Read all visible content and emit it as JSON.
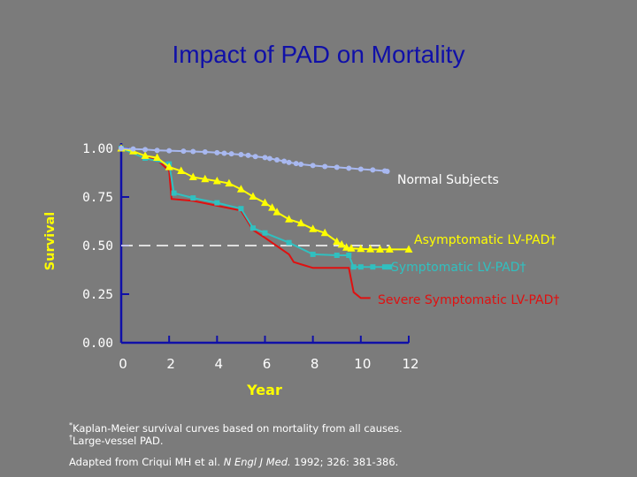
{
  "title": "Impact of PAD on Mortality",
  "chart_data": {
    "type": "line",
    "title": "Impact of PAD on Mortality",
    "xlabel": "Year",
    "ylabel": "Survival",
    "xlim": [
      0,
      12
    ],
    "ylim": [
      0.0,
      1.0
    ],
    "x_ticks": [
      "0",
      "2",
      "4",
      "6",
      "8",
      "10",
      "12"
    ],
    "y_ticks": [
      "0.00",
      "0.25",
      "0.50",
      "0.75",
      "1.00"
    ],
    "grid": false,
    "legend": "inline labels at the right end of each curve",
    "reference_line": {
      "y": 0.5,
      "style": "dashed",
      "x_range": [
        0,
        11.2
      ]
    },
    "series": [
      {
        "name": "Normal Subjects",
        "color": "#a8b8f0",
        "marker": "circle",
        "points": [
          [
            0,
            1.0
          ],
          [
            0.5,
            0.997
          ],
          [
            1,
            0.994
          ],
          [
            1.5,
            0.99
          ],
          [
            2,
            0.988
          ],
          [
            2.6,
            0.986
          ],
          [
            3,
            0.984
          ],
          [
            3.5,
            0.982
          ],
          [
            4,
            0.978
          ],
          [
            4.3,
            0.975
          ],
          [
            4.6,
            0.972
          ],
          [
            5,
            0.968
          ],
          [
            5.3,
            0.964
          ],
          [
            5.6,
            0.958
          ],
          [
            6,
            0.953
          ],
          [
            6.2,
            0.948
          ],
          [
            6.5,
            0.941
          ],
          [
            6.8,
            0.934
          ],
          [
            7,
            0.928
          ],
          [
            7.3,
            0.922
          ],
          [
            7.5,
            0.918
          ],
          [
            8,
            0.912
          ],
          [
            8.5,
            0.907
          ],
          [
            9,
            0.903
          ],
          [
            9.5,
            0.898
          ],
          [
            10,
            0.893
          ],
          [
            10.5,
            0.889
          ],
          [
            11,
            0.884
          ],
          [
            11.1,
            0.882
          ]
        ]
      },
      {
        "name": "Asymptomatic LV-PAD†",
        "color": "#ffff00",
        "marker": "triangle",
        "points": [
          [
            0,
            1.0
          ],
          [
            0.5,
            0.985
          ],
          [
            1,
            0.962
          ],
          [
            1.5,
            0.952
          ],
          [
            2,
            0.904
          ],
          [
            2.5,
            0.884
          ],
          [
            3,
            0.852
          ],
          [
            3.5,
            0.842
          ],
          [
            4,
            0.832
          ],
          [
            4.5,
            0.82
          ],
          [
            5,
            0.79
          ],
          [
            5.5,
            0.752
          ],
          [
            6,
            0.72
          ],
          [
            6.3,
            0.695
          ],
          [
            6.5,
            0.672
          ],
          [
            7,
            0.635
          ],
          [
            7.5,
            0.615
          ],
          [
            8,
            0.585
          ],
          [
            8.5,
            0.565
          ],
          [
            9,
            0.52
          ],
          [
            9.2,
            0.505
          ],
          [
            9.4,
            0.49
          ],
          [
            9.6,
            0.485
          ],
          [
            10,
            0.483
          ],
          [
            10.4,
            0.481
          ],
          [
            10.8,
            0.48
          ],
          [
            11.2,
            0.48
          ],
          [
            12,
            0.48
          ]
        ]
      },
      {
        "name": "Symptomatic LV-PAD†",
        "color": "#30c0c0",
        "marker": "square",
        "points": [
          [
            0,
            1.0
          ],
          [
            1,
            0.95
          ],
          [
            2,
            0.92
          ],
          [
            2.2,
            0.77
          ],
          [
            3,
            0.745
          ],
          [
            4,
            0.72
          ],
          [
            5,
            0.69
          ],
          [
            5.5,
            0.59
          ],
          [
            6,
            0.565
          ],
          [
            7,
            0.515
          ],
          [
            8,
            0.455
          ],
          [
            9,
            0.45
          ],
          [
            9.5,
            0.45
          ],
          [
            9.7,
            0.39
          ],
          [
            10,
            0.39
          ],
          [
            10.5,
            0.39
          ],
          [
            11,
            0.39
          ],
          [
            11.2,
            0.39
          ]
        ]
      },
      {
        "name": "Severe Symptomatic LV-PAD†",
        "color": "#e01010",
        "marker": "none",
        "points": [
          [
            0,
            1.0
          ],
          [
            1,
            0.96
          ],
          [
            1.6,
            0.93
          ],
          [
            2,
            0.885
          ],
          [
            2.1,
            0.74
          ],
          [
            3,
            0.73
          ],
          [
            4,
            0.705
          ],
          [
            5,
            0.68
          ],
          [
            5.5,
            0.58
          ],
          [
            6,
            0.54
          ],
          [
            7,
            0.455
          ],
          [
            7.2,
            0.415
          ],
          [
            7.6,
            0.4
          ],
          [
            8,
            0.385
          ],
          [
            9,
            0.385
          ],
          [
            9.5,
            0.385
          ],
          [
            9.7,
            0.26
          ],
          [
            10,
            0.23
          ],
          [
            10.4,
            0.23
          ]
        ]
      }
    ]
  },
  "footnotes": {
    "line1": "Kaplan-Meier survival curves based on mortality from all causes.",
    "line2": "Large-vessel PAD.",
    "adapted_prefix": "Adapted from Criqui MH et al. ",
    "journal": "N Engl J Med.",
    "adapted_suffix": " 1992; 326: 381-386."
  }
}
